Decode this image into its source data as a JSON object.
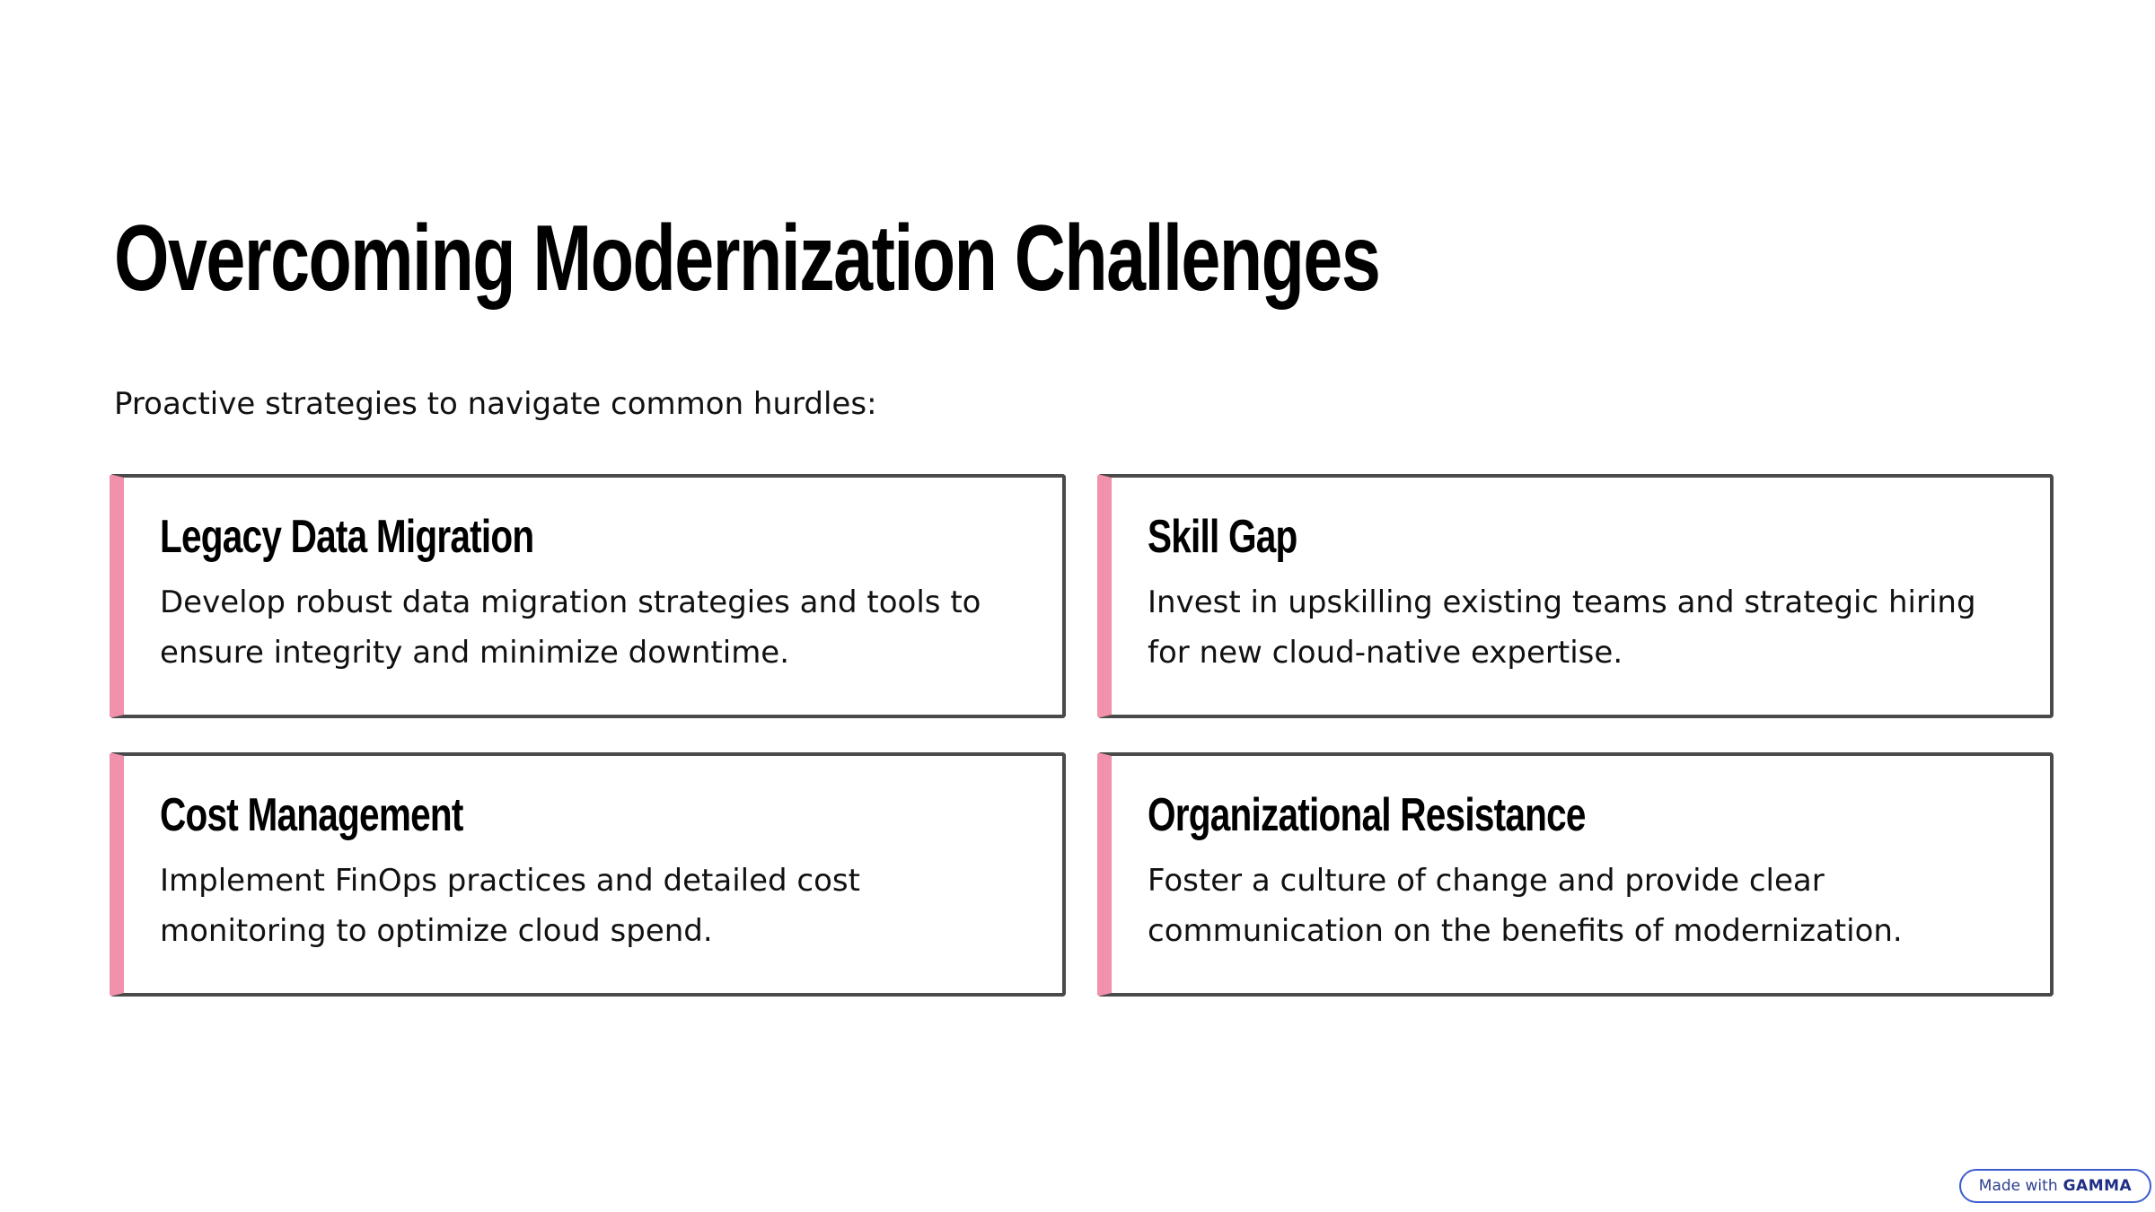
{
  "slide": {
    "title": "Overcoming Modernization Challenges",
    "subtitle": "Proactive strategies to navigate common hurdles:",
    "cards": [
      {
        "title": "Legacy Data Migration",
        "body": "Develop robust data migration strategies and tools to ensure integrity and minimize downtime."
      },
      {
        "title": "Skill Gap",
        "body": "Invest in upskilling existing teams and strategic hiring for new cloud-native expertise."
      },
      {
        "title": "Cost Management",
        "body": "Implement FinOps practices and detailed cost monitoring to optimize cloud spend."
      },
      {
        "title": "Organizational Resistance",
        "body": "Foster a culture of change and provide clear communication on the benefits of modernization."
      }
    ]
  },
  "badge": {
    "prefix": "Made with",
    "brand": "GAMMA"
  },
  "colors": {
    "accent": "#f291ab",
    "card_border": "#4a4a4a",
    "badge_border": "#3c5ccf"
  }
}
